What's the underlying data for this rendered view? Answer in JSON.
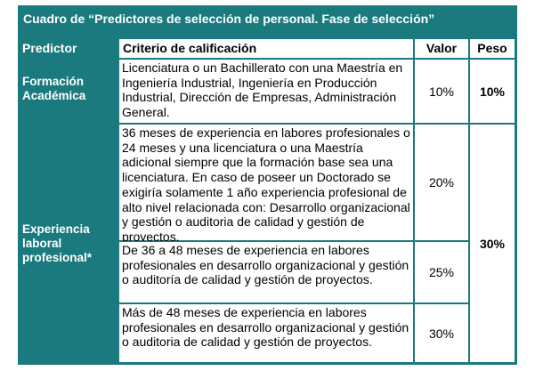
{
  "table": {
    "title": "Cuadro de “Predictores de selección de personal. Fase de selección”",
    "headers": {
      "predictor": "Predictor",
      "criterio": "Criterio de calificación",
      "valor": "Valor",
      "peso": "Peso"
    },
    "groups": [
      {
        "predictor": "Formación Académica",
        "peso": "10%",
        "rows": [
          {
            "criterio": "Licenciatura o un Bachillerato con una Maestría en Ingeniería Industrial, Ingeniería en Producción Industrial, Dirección de Empresas, Administración General.",
            "valor": "10%"
          }
        ]
      },
      {
        "predictor": "Experiencia laboral profesional*",
        "peso": "30%",
        "rows": [
          {
            "criterio": "36 meses de experiencia en labores profesionales o 24 meses y una licenciatura o una Maestría adicional siempre que la formación base sea una licenciatura. En caso de poseer un Doctorado se exigiría solamente 1 año experiencia profesional de alto nivel relacionada con: Desarrollo organizacional y gestión o auditoria de calidad y gestión de proyectos.",
            "valor": "20%"
          },
          {
            "criterio": "De 36 a 48 meses de experiencia en labores profesionales en desarrollo organizacional y gestión o auditoría de calidad y gestión de proyectos.",
            "valor": "25%"
          },
          {
            "criterio": "Más de 48 meses de experiencia en labores profesionales en desarrollo organizacional y gestión o auditoria de calidad y gestión de proyectos.",
            "valor": "30%"
          }
        ]
      }
    ]
  }
}
